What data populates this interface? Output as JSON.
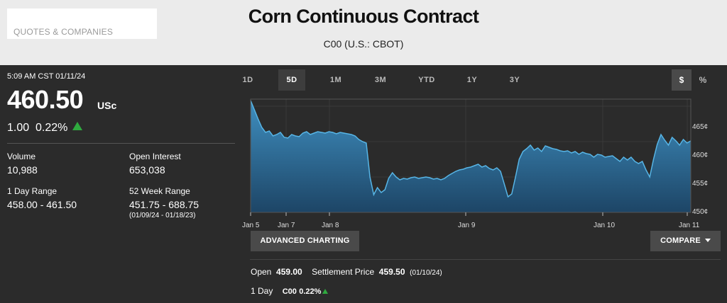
{
  "header": {
    "quotes_label": "QUOTES & COMPANIES",
    "title": "Corn Continuous Contract",
    "subtitle": "C00 (U.S.: CBOT)"
  },
  "quote": {
    "timestamp": "5:09 AM CST 01/11/24",
    "price": "460.50",
    "unit": "USc",
    "change": "1.00",
    "change_pct": "0.22%",
    "direction": "up"
  },
  "stats": {
    "volume_label": "Volume",
    "volume": "10,988",
    "open_interest_label": "Open Interest",
    "open_interest": "653,038",
    "day_range_label": "1 Day Range",
    "day_range": "458.00 - 461.50",
    "week52_label": "52 Week Range",
    "week52_range": "451.75 - 688.75",
    "week52_dates": "(01/09/24 - 01/18/23)"
  },
  "time_ranges": [
    "1D",
    "5D",
    "1M",
    "3M",
    "YTD",
    "1Y",
    "3Y"
  ],
  "active_range": "5D",
  "currency_toggle": {
    "dollar": "$",
    "percent": "%"
  },
  "chart_data": {
    "type": "area",
    "y_ticks": [
      "465¢",
      "460¢",
      "455¢",
      "450¢"
    ],
    "ylim": [
      450,
      466
    ],
    "x_ticks": [
      "Jan 5",
      "Jan 7",
      "Jan 8",
      "Jan 9",
      "Jan 10",
      "Jan 11"
    ],
    "series": [
      {
        "values": [
          465.8,
          464.5,
          463.2,
          462,
          461.3,
          461.5,
          460.8,
          461,
          461.3,
          460.6,
          460.5,
          461,
          460.8,
          460.7,
          461.2,
          461.4,
          461,
          461.2,
          461.4,
          461.3,
          461.2,
          461.4,
          461.3,
          461.1,
          461.3,
          461.2,
          461.1,
          461,
          460.8,
          460.3,
          460,
          459.8,
          455,
          452.5,
          453.5,
          452.8,
          453.2,
          454.8,
          455.6,
          455,
          454.6,
          454.8,
          454.7,
          454.9,
          455,
          454.8,
          454.9,
          455,
          454.9,
          454.7,
          454.8,
          454.6,
          454.8,
          455.2,
          455.5,
          455.8,
          456,
          456.1,
          456.3,
          456.4,
          456.6,
          456.8,
          456.4,
          456.6,
          456.2,
          456,
          456.3,
          455.8,
          454,
          452.2,
          452.6,
          455,
          457.5,
          458.6,
          459,
          459.5,
          458.8,
          459.1,
          458.6,
          459.4,
          459.2,
          459,
          458.9,
          458.7,
          458.6,
          458.7,
          458.4,
          458.6,
          458.2,
          458.5,
          458.3,
          458.2,
          457.8,
          458.2,
          458.1,
          457.8,
          457.9,
          458,
          457.6,
          457.2,
          457.8,
          457.4,
          457.8,
          457.2,
          456.9,
          457.2,
          456,
          455,
          457.5,
          459.6,
          461,
          460.2,
          459.5,
          460.6,
          460.1,
          459.5,
          460.3,
          459.8,
          460.1
        ]
      }
    ]
  },
  "buttons": {
    "advanced_charting": "ADVANCED CHARTING",
    "compare": "COMPARE"
  },
  "summary": {
    "open_label": "Open",
    "open_value": "459.00",
    "settlement_label": "Settlement Price",
    "settlement_value": "459.50",
    "settlement_date": "(01/10/24)",
    "day_label": "1 Day",
    "symbol": "C00",
    "symbol_change": "0.22%"
  },
  "colors": {
    "up": "#2faa3f",
    "line": "#57b5e6",
    "fill_top": "#3f8fc0",
    "fill_bottom": "#1d4566"
  }
}
